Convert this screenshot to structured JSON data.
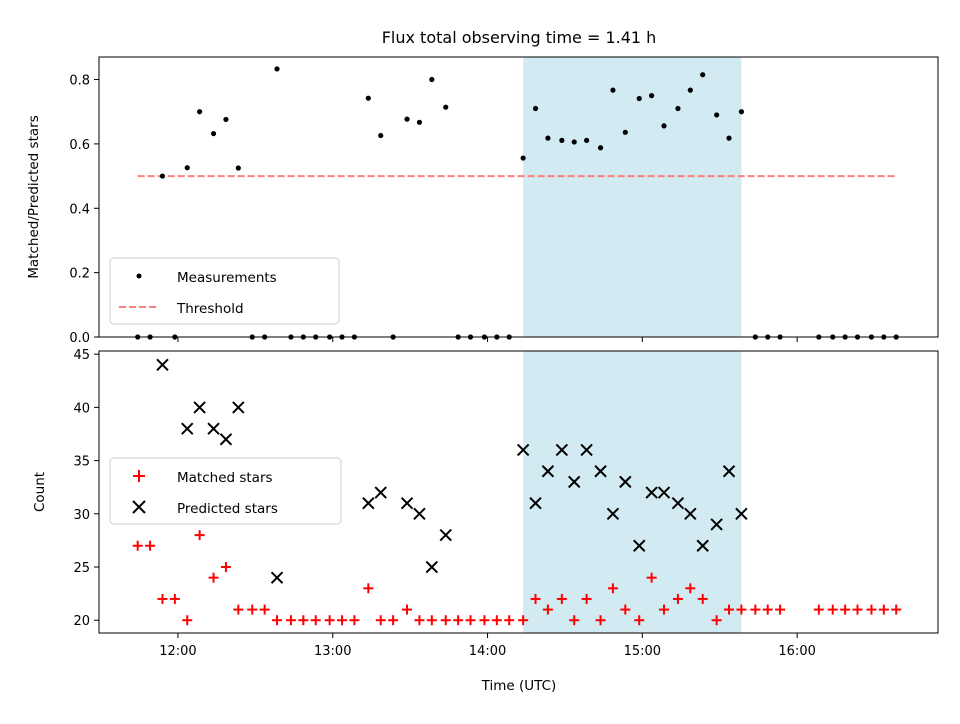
{
  "chart_data": [
    {
      "type": "scatter",
      "title": "Flux total observing time = 1.41 h",
      "xlabel": "",
      "ylabel": "Matched/Predicted stars",
      "ylim": [
        0,
        0.87
      ],
      "yticks": [
        0.0,
        0.2,
        0.4,
        0.6,
        0.8
      ],
      "yticklabels": [
        "0.0",
        "0.2",
        "0.4",
        "0.6",
        "0.8"
      ],
      "grid": false,
      "legend_position": "lower-left",
      "highlight_span": {
        "start_h": 14.23,
        "end_h": 15.64,
        "color": "#add8e6"
      },
      "series": [
        {
          "name": "Measurements",
          "kind": "scatter",
          "color": "#000000",
          "x_h": [
            11.74,
            11.82,
            11.9,
            11.98,
            12.06,
            12.14,
            12.23,
            12.31,
            12.39,
            12.48,
            12.56,
            12.64,
            12.73,
            12.81,
            12.89,
            12.98,
            13.06,
            13.14,
            13.23,
            13.31,
            13.39,
            13.48,
            13.56,
            13.64,
            13.73,
            13.81,
            13.89,
            13.98,
            14.06,
            14.14,
            14.23,
            14.31,
            14.39,
            14.48,
            14.56,
            14.64,
            14.73,
            14.81,
            14.89,
            14.98,
            15.06,
            15.14,
            15.23,
            15.31,
            15.39,
            15.48,
            15.56,
            15.64,
            15.73,
            15.81,
            15.89,
            16.14,
            16.23,
            16.31,
            16.39,
            16.48,
            16.56,
            16.64
          ],
          "y": [
            0,
            0,
            0.5,
            0,
            0.526,
            0.7,
            0.632,
            0.676,
            0.525,
            0,
            0,
            0.833,
            0,
            0,
            0,
            0,
            0,
            0,
            0.742,
            0.626,
            0,
            0.677,
            0.667,
            0.8,
            0.714,
            0,
            0,
            0,
            0,
            0,
            0.556,
            0.71,
            0.618,
            0.611,
            0.606,
            0.611,
            0.588,
            0.767,
            0.636,
            0.741,
            0.75,
            0.656,
            0.71,
            0.767,
            0.815,
            0.69,
            0.618,
            0.7,
            0,
            0,
            0,
            0,
            0,
            0,
            0,
            0,
            0,
            0
          ]
        },
        {
          "name": "Threshold",
          "kind": "line",
          "style": "dashed",
          "color": "#ff7f7f",
          "x_h": [
            11.74,
            16.64
          ],
          "y": [
            0.5,
            0.5
          ]
        }
      ]
    },
    {
      "type": "scatter",
      "xlabel": "Time (UTC)",
      "ylabel": "Count",
      "xlim_h": [
        11.49,
        16.91
      ],
      "xticks_h": [
        12,
        13,
        14,
        15,
        16
      ],
      "xticklabels": [
        "12:00",
        "13:00",
        "14:00",
        "15:00",
        "16:00"
      ],
      "ylim": [
        18.8,
        45.3
      ],
      "yticks": [
        20,
        25,
        30,
        35,
        40,
        45
      ],
      "yticklabels": [
        "20",
        "25",
        "30",
        "35",
        "40",
        "45"
      ],
      "grid": false,
      "legend_position": "center-left",
      "highlight_span": {
        "start_h": 14.23,
        "end_h": 15.64,
        "color": "#add8e6"
      },
      "series": [
        {
          "name": "Matched stars",
          "marker": "+",
          "color": "#ff0000",
          "x_h": [
            11.74,
            11.82,
            11.9,
            11.98,
            12.06,
            12.14,
            12.23,
            12.31,
            12.39,
            12.48,
            12.56,
            12.64,
            12.73,
            12.81,
            12.89,
            12.98,
            13.06,
            13.14,
            13.23,
            13.31,
            13.39,
            13.48,
            13.56,
            13.64,
            13.73,
            13.81,
            13.89,
            13.98,
            14.06,
            14.14,
            14.23,
            14.31,
            14.39,
            14.48,
            14.56,
            14.64,
            14.73,
            14.81,
            14.89,
            14.98,
            15.06,
            15.14,
            15.23,
            15.31,
            15.39,
            15.48,
            15.56,
            15.64,
            15.73,
            15.81,
            15.89,
            16.14,
            16.23,
            16.31,
            16.39,
            16.48,
            16.56,
            16.64
          ],
          "y": [
            27,
            27,
            22,
            22,
            20,
            28,
            24,
            25,
            21,
            21,
            21,
            20,
            20,
            20,
            20,
            20,
            20,
            20,
            23,
            20,
            20,
            21,
            20,
            20,
            20,
            20,
            20,
            20,
            20,
            20,
            20,
            22,
            21,
            22,
            20,
            22,
            20,
            23,
            21,
            20,
            24,
            21,
            22,
            23,
            22,
            20,
            21,
            21,
            21,
            21,
            21,
            21,
            21,
            21,
            21,
            21,
            21,
            21
          ]
        },
        {
          "name": "Predicted stars",
          "marker": "x",
          "color": "#000000",
          "x_h": [
            11.9,
            12.06,
            12.14,
            12.23,
            12.31,
            12.39,
            12.64,
            13.23,
            13.31,
            13.48,
            13.56,
            13.64,
            13.73,
            14.23,
            14.31,
            14.39,
            14.48,
            14.56,
            14.64,
            14.73,
            14.81,
            14.89,
            14.98,
            15.06,
            15.14,
            15.23,
            15.31,
            15.39,
            15.48,
            15.56,
            15.64
          ],
          "y": [
            44,
            38,
            40,
            38,
            37,
            40,
            24,
            31,
            32,
            31,
            30,
            25,
            28,
            36,
            31,
            34,
            36,
            33,
            36,
            34,
            30,
            33,
            27,
            32,
            32,
            31,
            30,
            27,
            29,
            34,
            30
          ]
        }
      ]
    }
  ]
}
